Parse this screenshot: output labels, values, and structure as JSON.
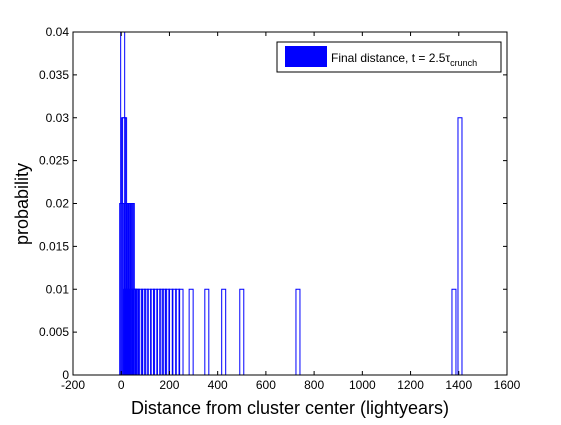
{
  "chart_data": {
    "type": "bar",
    "xlabel": "Distance from cluster center (lightyears)",
    "ylabel": "probability",
    "xlim": [
      -200,
      1600
    ],
    "ylim": [
      0,
      0.04
    ],
    "xticks": [
      "-200",
      "0",
      "200",
      "400",
      "600",
      "800",
      "1000",
      "1200",
      "1400",
      "1600"
    ],
    "yticks": [
      "0",
      "0.005",
      "0.01",
      "0.015",
      "0.02",
      "0.025",
      "0.03",
      "0.035",
      "0.04"
    ],
    "grid": false,
    "legend_position": "top-right",
    "bar_color": "#0000ff",
    "series": [
      {
        "name": "Final distance, t = 2.5τcrunch",
        "legend_main": "Final distance, t = 2.5τ",
        "legend_sub": "crunch",
        "points": [
          {
            "x": 2,
            "y": 0.02
          },
          {
            "x": 6,
            "y": 0.04
          },
          {
            "x": 10,
            "y": 0.03
          },
          {
            "x": 14,
            "y": 0.03
          },
          {
            "x": 18,
            "y": 0.01
          },
          {
            "x": 22,
            "y": 0.02
          },
          {
            "x": 26,
            "y": 0.01
          },
          {
            "x": 30,
            "y": 0.02
          },
          {
            "x": 34,
            "y": 0.02
          },
          {
            "x": 38,
            "y": 0.02
          },
          {
            "x": 42,
            "y": 0.02
          },
          {
            "x": 46,
            "y": 0.02
          },
          {
            "x": 50,
            "y": 0.01
          },
          {
            "x": 55,
            "y": 0.01
          },
          {
            "x": 60,
            "y": 0.01
          },
          {
            "x": 68,
            "y": 0.01
          },
          {
            "x": 80,
            "y": 0.01
          },
          {
            "x": 92,
            "y": 0.01
          },
          {
            "x": 104,
            "y": 0.01
          },
          {
            "x": 116,
            "y": 0.01
          },
          {
            "x": 130,
            "y": 0.01
          },
          {
            "x": 142,
            "y": 0.01
          },
          {
            "x": 156,
            "y": 0.01
          },
          {
            "x": 168,
            "y": 0.01
          },
          {
            "x": 180,
            "y": 0.01
          },
          {
            "x": 192,
            "y": 0.01
          },
          {
            "x": 206,
            "y": 0.01
          },
          {
            "x": 220,
            "y": 0.01
          },
          {
            "x": 234,
            "y": 0.01
          },
          {
            "x": 248,
            "y": 0.01
          },
          {
            "x": 290,
            "y": 0.01
          },
          {
            "x": 355,
            "y": 0.01
          },
          {
            "x": 425,
            "y": 0.01
          },
          {
            "x": 500,
            "y": 0.01
          },
          {
            "x": 733,
            "y": 0.01
          },
          {
            "x": 1380,
            "y": 0.01
          },
          {
            "x": 1405,
            "y": 0.03
          }
        ]
      }
    ]
  }
}
